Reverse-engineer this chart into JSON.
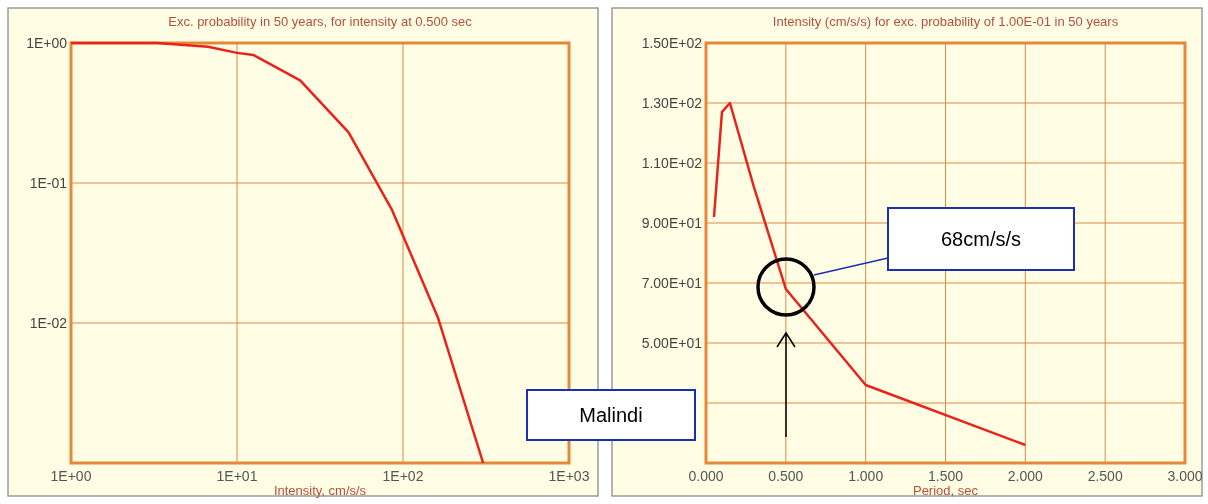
{
  "chart_data": [
    {
      "type": "line",
      "title": "Exc. probability in 50 years, for intensity at 0.500 sec",
      "xlabel": "Intensity, cm/s/s",
      "log": "xy",
      "grid": true,
      "xlim": [
        1,
        1000
      ],
      "ylim": [
        0.001,
        1
      ],
      "xticks": [
        {
          "value": 1,
          "label": "1E+00"
        },
        {
          "value": 10,
          "label": "1E+01"
        },
        {
          "value": 100,
          "label": "1E+02"
        },
        {
          "value": 1000,
          "label": "1E+03"
        }
      ],
      "yticks": [
        {
          "value": 1,
          "label": "1E+00"
        },
        {
          "value": 0.1,
          "label": "1E-01"
        },
        {
          "value": 0.01,
          "label": "1E-02"
        },
        {
          "value": 0.001,
          "label": null
        }
      ],
      "series": [
        {
          "color": "#e8231b",
          "x": [
            1,
            3.3,
            6.7,
            10,
            12.6,
            24,
            47,
            86,
            162,
            304
          ],
          "values": [
            1,
            1,
            0.94,
            0.85,
            0.82,
            0.54,
            0.23,
            0.064,
            0.011,
            0.001
          ]
        }
      ]
    },
    {
      "type": "line",
      "title": "Intensity (cm/s/s) for exc. probability of 1.00E-01 in 50 years",
      "xlabel": "Period, sec",
      "grid": true,
      "xlim": [
        0,
        3
      ],
      "ylim": [
        10,
        150
      ],
      "xticks": [
        {
          "value": 0,
          "label": "0.000"
        },
        {
          "value": 0.5,
          "label": "0.500"
        },
        {
          "value": 1,
          "label": "1.000"
        },
        {
          "value": 1.5,
          "label": "1.500"
        },
        {
          "value": 2,
          "label": "2.000"
        },
        {
          "value": 2.5,
          "label": "2.500"
        },
        {
          "value": 3,
          "label": "3.000"
        }
      ],
      "yticks": [
        {
          "value": 10,
          "label": null
        },
        {
          "value": 30,
          "label": null
        },
        {
          "value": 50,
          "label": "5.00E+01"
        },
        {
          "value": 70,
          "label": "7.00E+01"
        },
        {
          "value": 90,
          "label": "9.00E+01"
        },
        {
          "value": 110,
          "label": "1.10E+02"
        },
        {
          "value": 130,
          "label": "1.30E+02"
        },
        {
          "value": 150,
          "label": "1.50E+02"
        }
      ],
      "series": [
        {
          "color": "#e8231b",
          "x": [
            0.05,
            0.1,
            0.15,
            0.3,
            0.5,
            1,
            2
          ],
          "values": [
            92,
            127,
            130,
            102,
            68,
            36,
            16
          ]
        }
      ],
      "annotations": [
        "68cm/s/s",
        "Malindi"
      ]
    }
  ]
}
